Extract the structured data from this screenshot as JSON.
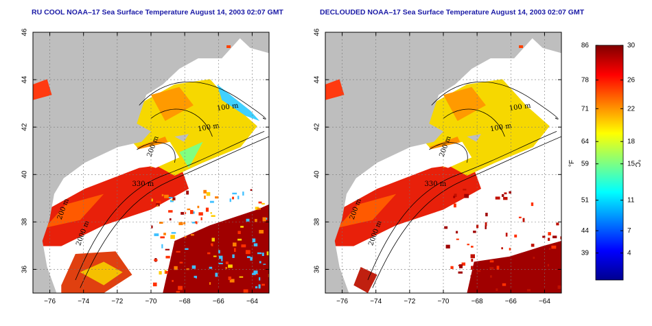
{
  "panels": [
    {
      "id": "left",
      "title": "RU COOL NOAA–17 Sea Surface Temperature August 14, 2003 02:07 GMT",
      "variant": "raw"
    },
    {
      "id": "right",
      "title": "DECLOUDED NOAA–17 Sea Surface Temperature August 14, 2003 02:07 GMT",
      "variant": "declouded"
    }
  ],
  "axes": {
    "lon_ticks": [
      "−76",
      "−74",
      "−72",
      "−70",
      "−68",
      "−66",
      "−64"
    ],
    "lat_ticks": [
      "46",
      "44",
      "42",
      "40",
      "38",
      "36"
    ],
    "lon_range": [
      -77,
      -63
    ],
    "lat_range": [
      35,
      46
    ]
  },
  "contour_labels": [
    "100 m",
    "100 m",
    "200 m",
    "330 m",
    "200 m",
    "2000 m"
  ],
  "colorbar": {
    "f_ticks": [
      "86",
      "78",
      "71",
      "64",
      "59",
      "51",
      "44",
      "39"
    ],
    "c_ticks": [
      "30",
      "26",
      "22",
      "18",
      "15",
      "11",
      "7",
      "4"
    ],
    "f_unit": "°F",
    "c_unit": "°C",
    "colors": [
      "#00008f",
      "#0000ff",
      "#0080ff",
      "#00ffff",
      "#80ff80",
      "#ffff00",
      "#ff8000",
      "#ff0000",
      "#800000"
    ]
  },
  "colors": {
    "land": "#bebebe",
    "cloud": "#ffffff",
    "title": "#1a1aa6"
  }
}
